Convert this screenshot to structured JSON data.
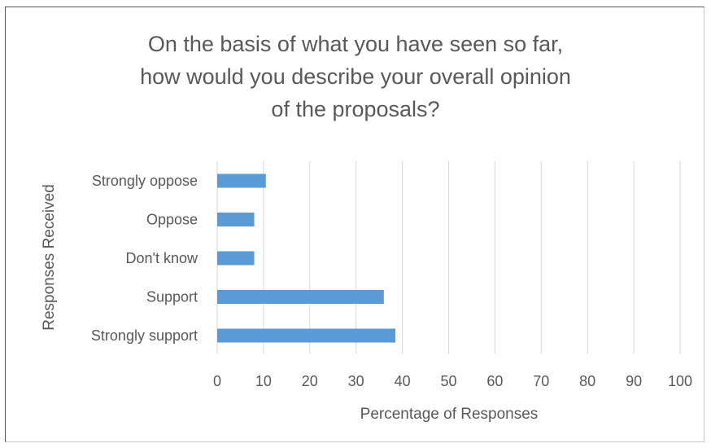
{
  "chart_data": {
    "type": "bar",
    "orientation": "horizontal",
    "title_lines": [
      "On the basis of what you have seen so far,",
      "how would you describe your overall opinion",
      "of the proposals?"
    ],
    "categories": [
      "Strongly oppose",
      "Oppose",
      "Don't know",
      "Support",
      "Strongly support"
    ],
    "values": [
      10.5,
      8,
      8,
      36,
      38.5
    ],
    "xlabel": "Percentage of Responses",
    "ylabel": "Responses Received",
    "xlim": [
      0,
      100
    ],
    "xticks": [
      "0",
      "10",
      "20",
      "30",
      "40",
      "50",
      "60",
      "70",
      "80",
      "90",
      "100"
    ],
    "grid": "vertical",
    "legend": "none",
    "bar_color": "#5b9bd5",
    "gridline_color": "#d9d9d9",
    "text_color": "#595959"
  }
}
